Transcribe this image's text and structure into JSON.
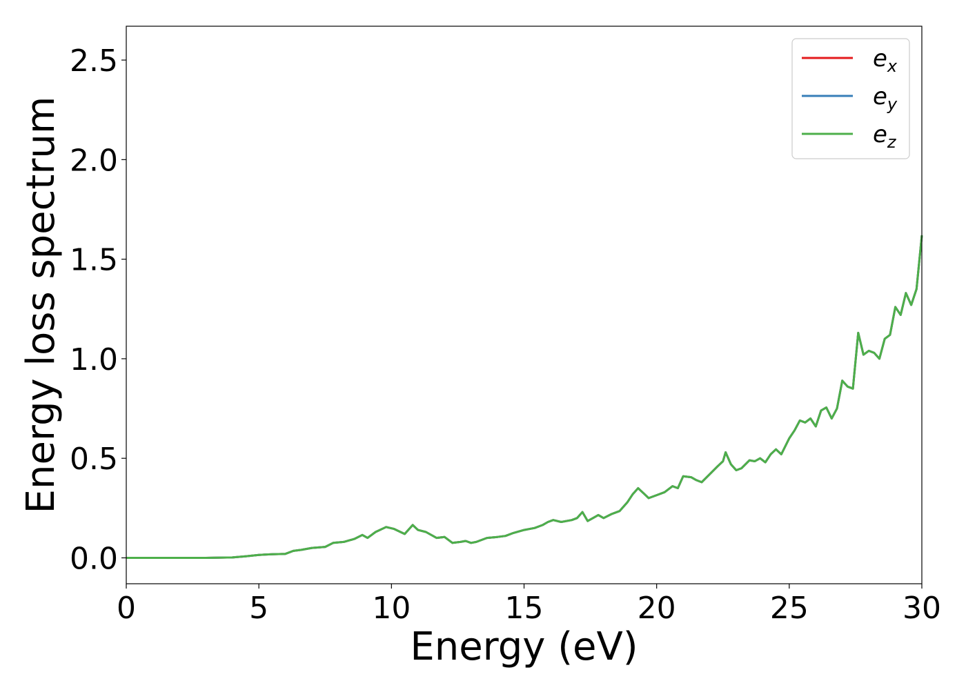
{
  "chart_data": {
    "type": "line",
    "title": "",
    "xlabel": "Energy (eV)",
    "ylabel": "Energy loss spectrum",
    "xlim": [
      0,
      30
    ],
    "ylim": [
      -0.13,
      2.67
    ],
    "xticks": [
      0,
      5,
      10,
      15,
      20,
      25,
      30
    ],
    "xtick_labels": [
      "0",
      "5",
      "10",
      "15",
      "20",
      "25",
      "30"
    ],
    "yticks": [
      0.0,
      0.5,
      1.0,
      1.5,
      2.0,
      2.5
    ],
    "ytick_labels": [
      "0.0",
      "0.5",
      "1.0",
      "1.5",
      "2.0",
      "2.5"
    ],
    "grid": false,
    "legend_position": "top-right",
    "legend": [
      {
        "base": "e",
        "sub": "x",
        "color": "#e41a1c"
      },
      {
        "base": "e",
        "sub": "y",
        "color": "#377eb8"
      },
      {
        "base": "e",
        "sub": "z",
        "color": "#4daf4a"
      }
    ],
    "x": [
      0,
      1,
      2,
      3,
      4,
      4.5,
      5,
      5.5,
      6,
      6.3,
      6.6,
      7,
      7.5,
      7.8,
      8.2,
      8.6,
      8.9,
      9.1,
      9.4,
      9.8,
      10.1,
      10.5,
      10.8,
      11.0,
      11.3,
      11.7,
      12.0,
      12.3,
      12.6,
      12.8,
      13.0,
      13.2,
      13.6,
      14.0,
      14.3,
      14.6,
      15.0,
      15.4,
      15.7,
      15.9,
      16.1,
      16.4,
      16.8,
      17.0,
      17.2,
      17.4,
      17.6,
      17.8,
      18.0,
      18.3,
      18.6,
      18.9,
      19.1,
      19.3,
      19.5,
      19.7,
      20.0,
      20.3,
      20.6,
      20.8,
      21.0,
      21.3,
      21.5,
      21.7,
      22.0,
      22.3,
      22.5,
      22.6,
      22.8,
      23.0,
      23.2,
      23.5,
      23.7,
      23.9,
      24.1,
      24.3,
      24.5,
      24.7,
      25.0,
      25.2,
      25.4,
      25.6,
      25.8,
      26.0,
      26.2,
      26.4,
      26.6,
      26.8,
      27.0,
      27.2,
      27.4,
      27.6,
      27.8,
      28.0,
      28.2,
      28.4,
      28.6,
      28.8,
      29.0,
      29.2,
      29.4,
      29.6,
      29.8,
      30.0
    ],
    "series": [
      {
        "name": "e_x",
        "color": "#e41a1c",
        "values": [
          0,
          0,
          0,
          0,
          0.002,
          0.008,
          0.015,
          0.018,
          0.02,
          0.035,
          0.04,
          0.05,
          0.055,
          0.075,
          0.08,
          0.095,
          0.115,
          0.1,
          0.13,
          0.155,
          0.145,
          0.12,
          0.165,
          0.14,
          0.13,
          0.1,
          0.105,
          0.075,
          0.08,
          0.085,
          0.075,
          0.08,
          0.1,
          0.105,
          0.11,
          0.125,
          0.14,
          0.15,
          0.165,
          0.18,
          0.19,
          0.18,
          0.19,
          0.2,
          0.23,
          0.185,
          0.2,
          0.215,
          0.2,
          0.22,
          0.235,
          0.28,
          0.32,
          0.35,
          0.325,
          0.3,
          0.315,
          0.33,
          0.36,
          0.35,
          0.41,
          0.405,
          0.39,
          0.38,
          0.42,
          0.46,
          0.485,
          0.53,
          0.47,
          0.44,
          0.45,
          0.49,
          0.485,
          0.5,
          0.48,
          0.52,
          0.545,
          0.52,
          0.6,
          0.64,
          0.69,
          0.68,
          0.7,
          0.66,
          0.74,
          0.755,
          0.7,
          0.75,
          0.89,
          0.86,
          0.85,
          1.13,
          1.02,
          1.04,
          1.03,
          1.0,
          1.1,
          1.12,
          1.26,
          1.22,
          1.33,
          1.27,
          1.35,
          1.62
        ]
      },
      {
        "name": "e_y",
        "color": "#377eb8",
        "values": [
          0,
          0,
          0,
          0,
          0.002,
          0.008,
          0.015,
          0.018,
          0.02,
          0.035,
          0.04,
          0.05,
          0.055,
          0.075,
          0.08,
          0.095,
          0.115,
          0.1,
          0.13,
          0.155,
          0.145,
          0.12,
          0.165,
          0.14,
          0.13,
          0.1,
          0.105,
          0.075,
          0.08,
          0.085,
          0.075,
          0.08,
          0.1,
          0.105,
          0.11,
          0.125,
          0.14,
          0.15,
          0.165,
          0.18,
          0.19,
          0.18,
          0.19,
          0.2,
          0.23,
          0.185,
          0.2,
          0.215,
          0.2,
          0.22,
          0.235,
          0.28,
          0.32,
          0.35,
          0.325,
          0.3,
          0.315,
          0.33,
          0.36,
          0.35,
          0.41,
          0.405,
          0.39,
          0.38,
          0.42,
          0.46,
          0.485,
          0.53,
          0.47,
          0.44,
          0.45,
          0.49,
          0.485,
          0.5,
          0.48,
          0.52,
          0.545,
          0.52,
          0.6,
          0.64,
          0.69,
          0.68,
          0.7,
          0.66,
          0.74,
          0.755,
          0.7,
          0.75,
          0.89,
          0.86,
          0.85,
          1.13,
          1.02,
          1.04,
          1.03,
          1.0,
          1.1,
          1.12,
          1.26,
          1.22,
          1.33,
          1.27,
          1.35,
          1.62
        ]
      },
      {
        "name": "e_z",
        "color": "#4daf4a",
        "values": [
          0,
          0,
          0,
          0,
          0.002,
          0.008,
          0.015,
          0.018,
          0.02,
          0.035,
          0.04,
          0.05,
          0.055,
          0.075,
          0.08,
          0.095,
          0.115,
          0.1,
          0.13,
          0.155,
          0.145,
          0.12,
          0.165,
          0.14,
          0.13,
          0.1,
          0.105,
          0.075,
          0.08,
          0.085,
          0.075,
          0.08,
          0.1,
          0.105,
          0.11,
          0.125,
          0.14,
          0.15,
          0.165,
          0.18,
          0.19,
          0.18,
          0.19,
          0.2,
          0.23,
          0.185,
          0.2,
          0.215,
          0.2,
          0.22,
          0.235,
          0.28,
          0.32,
          0.35,
          0.325,
          0.3,
          0.315,
          0.33,
          0.36,
          0.35,
          0.41,
          0.405,
          0.39,
          0.38,
          0.42,
          0.46,
          0.485,
          0.53,
          0.47,
          0.44,
          0.45,
          0.49,
          0.485,
          0.5,
          0.48,
          0.52,
          0.545,
          0.52,
          0.6,
          0.64,
          0.69,
          0.68,
          0.7,
          0.66,
          0.74,
          0.755,
          0.7,
          0.75,
          0.89,
          0.86,
          0.85,
          1.13,
          1.02,
          1.04,
          1.03,
          1.0,
          1.1,
          1.12,
          1.26,
          1.22,
          1.33,
          1.27,
          1.35,
          1.62
        ]
      }
    ]
  }
}
